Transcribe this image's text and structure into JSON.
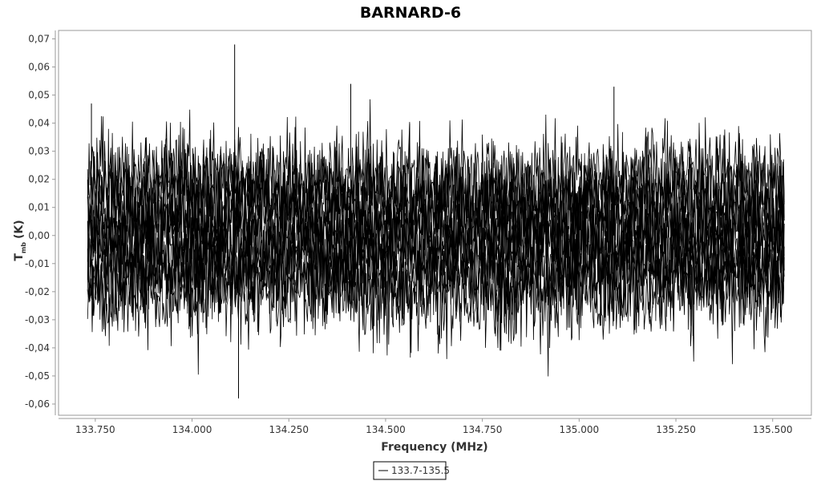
{
  "chart_data": {
    "type": "line",
    "title": "BARNARD-6",
    "xlabel": "Frequency (MHz)",
    "ylabel_main": "T",
    "ylabel_sub": "mb",
    "ylabel_unit": "(K)",
    "xlim": [
      133.655,
      135.6
    ],
    "ylim": [
      -0.064,
      0.073
    ],
    "x_ticks": [
      133.75,
      134.0,
      134.25,
      134.5,
      134.75,
      135.0,
      135.25,
      135.5
    ],
    "x_tick_labels": [
      "133.750",
      "134.000",
      "134.250",
      "134.500",
      "134.750",
      "135.000",
      "135.250",
      "135.500"
    ],
    "y_ticks": [
      0.07,
      0.06,
      0.05,
      0.04,
      0.03,
      0.02,
      0.01,
      0.0,
      -0.01,
      -0.02,
      -0.03,
      -0.04,
      -0.05,
      -0.06
    ],
    "y_tick_labels": [
      "0,07",
      "0,06",
      "0,05",
      "0,04",
      "0,03",
      "0,02",
      "0,01",
      "0,00",
      "-0,01",
      "-0,02",
      "-0,03",
      "-0,04",
      "-0,05",
      "-0,06"
    ],
    "x_range": [
      133.73,
      135.53
    ],
    "series": [
      {
        "name": "133.7-135.5",
        "color": "#000000",
        "baseline": 0.0,
        "noise_rms": 0.02
      }
    ],
    "peaks": [
      {
        "x": 134.11,
        "y": 0.068
      },
      {
        "x": 134.12,
        "y": -0.058
      },
      {
        "x": 134.41,
        "y": 0.054
      },
      {
        "x": 135.09,
        "y": 0.053
      },
      {
        "x": 133.74,
        "y": 0.047
      }
    ],
    "grid": false,
    "legend": "bottom-center"
  },
  "legend_label": "133.7-135.5",
  "colors": {
    "line": "#000000",
    "frame": "#999999",
    "background": "#ffffff"
  }
}
